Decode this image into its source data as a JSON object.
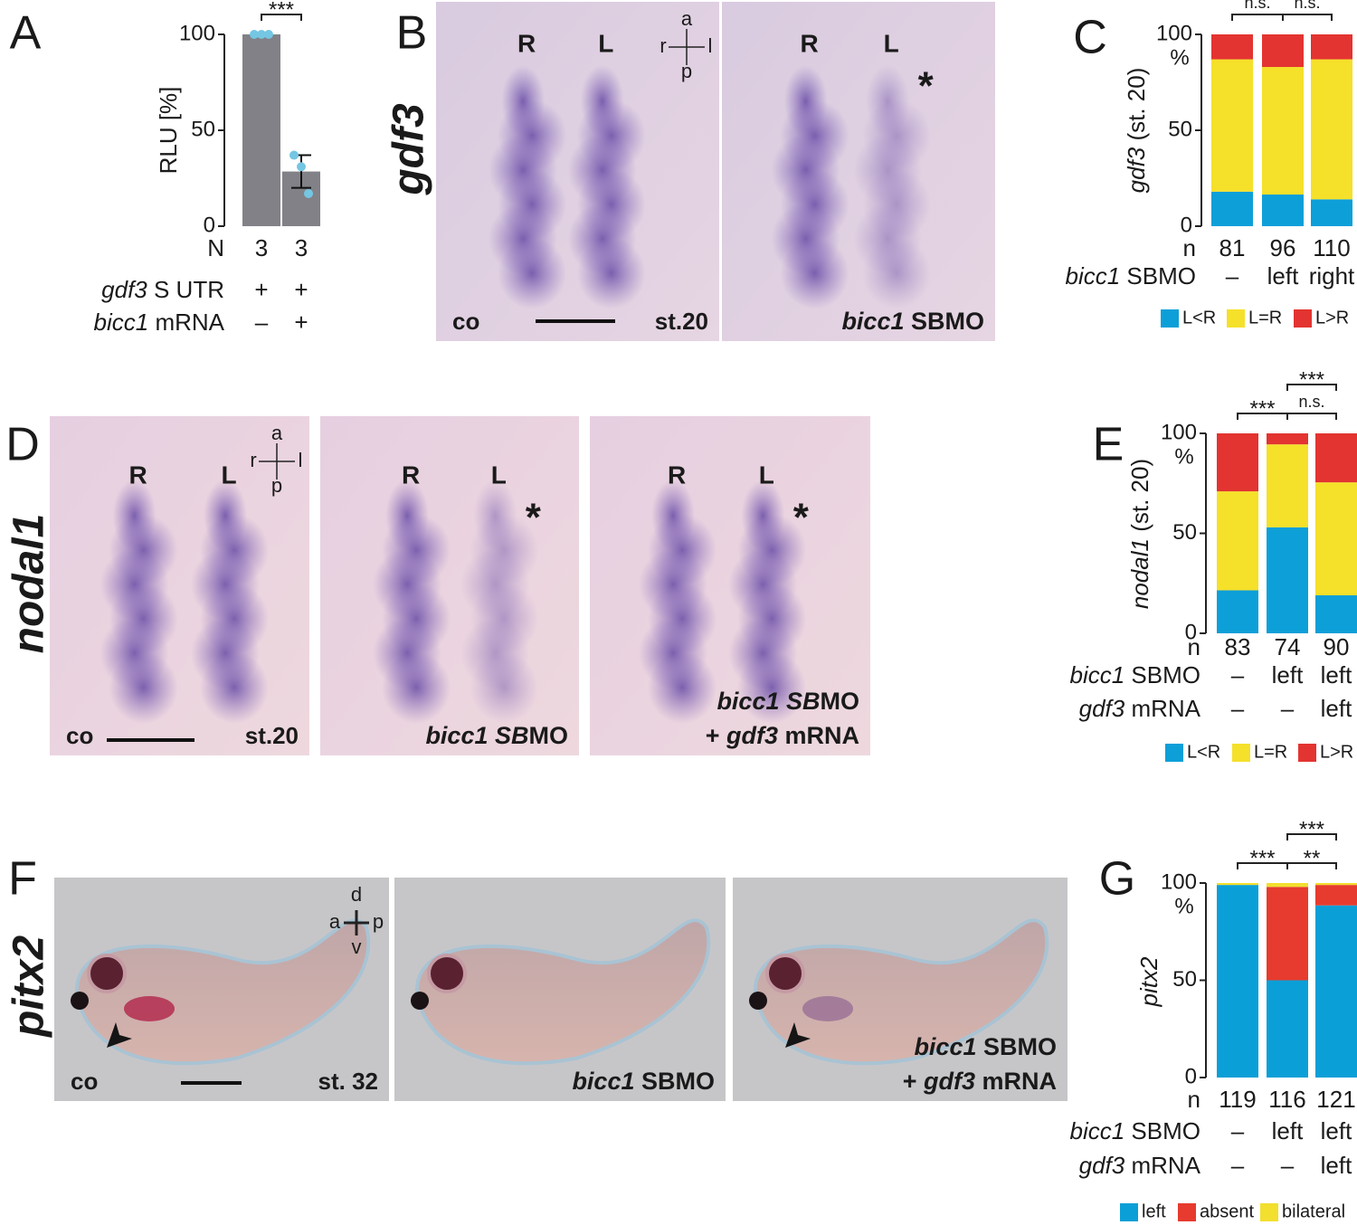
{
  "panel_letters": [
    "A",
    "B",
    "C",
    "D",
    "E",
    "F",
    "G"
  ],
  "chart_data": [
    {
      "type": "bar",
      "ylabel": [
        {
          "text": "RLU [%]"
        }
      ],
      "values": [
        100,
        28.5
      ],
      "errors": [
        null,
        8.5
      ],
      "points": [
        [
          100,
          100,
          100
        ],
        [
          37,
          31,
          17
        ]
      ],
      "color": "#818187",
      "point_color": "#74c6e2",
      "ylim": [
        0,
        100
      ],
      "yticks": [
        0,
        50,
        100
      ],
      "annotations": [
        {
          "text": "***",
          "from": 0,
          "to": 1,
          "level": 0
        }
      ],
      "rows": [
        {
          "label": [
            {
              "text": "N"
            }
          ],
          "values": [
            3,
            3
          ]
        },
        {
          "label": [
            {
              "text": "gdf3",
              "italic": true
            },
            {
              "text": " S UTR"
            }
          ],
          "values": [
            "+",
            "+"
          ]
        },
        {
          "label": [
            {
              "text": "bicc1",
              "italic": true
            },
            {
              "text": " mRNA"
            }
          ],
          "values": [
            "–",
            "+"
          ]
        }
      ]
    },
    {
      "type": "stacked_bar",
      "ylabel": [
        {
          "text": "gdf3",
          "italic": true
        },
        {
          "text": " (st. 20)"
        }
      ],
      "ylabel_unit": "%",
      "ylim": [
        0,
        100
      ],
      "yticks": [
        0,
        50,
        100
      ],
      "series": [
        {
          "name": "L<R",
          "color": "#0d9fd8",
          "values": [
            18,
            16.5,
            14
          ]
        },
        {
          "name": "L=R",
          "color": "#f5e02a",
          "values": [
            69,
            66.5,
            73
          ]
        },
        {
          "name": "L>R",
          "color": "#e33431",
          "values": [
            13,
            17,
            13
          ]
        }
      ],
      "annotations": [
        {
          "text": "n.s.",
          "from": 0,
          "to": 1,
          "level": 0
        },
        {
          "text": "n.s.",
          "from": 1,
          "to": 2,
          "level": 0
        }
      ],
      "rows": [
        {
          "label": [
            {
              "text": "n"
            }
          ],
          "values": [
            81,
            96,
            110
          ]
        },
        {
          "label": [
            {
              "text": "bicc1",
              "italic": true
            },
            {
              "text": " SBMO"
            }
          ],
          "values": [
            "–",
            "left",
            "right"
          ]
        }
      ]
    },
    {
      "type": "stacked_bar",
      "ylabel": [
        {
          "text": "nodal1",
          "italic": true
        },
        {
          "text": " (st. 20)"
        }
      ],
      "ylabel_unit": "%",
      "ylim": [
        0,
        100
      ],
      "yticks": [
        0,
        50,
        100
      ],
      "series": [
        {
          "name": "L<R",
          "color": "#0d9fd8",
          "values": [
            21.5,
            53,
            19
          ]
        },
        {
          "name": "L=R",
          "color": "#f5e02a",
          "values": [
            49.5,
            41.5,
            56.5
          ]
        },
        {
          "name": "L>R",
          "color": "#e33431",
          "values": [
            29,
            5.5,
            24.5
          ]
        }
      ],
      "annotations": [
        {
          "text": "***",
          "from": 0,
          "to": 1,
          "level": 0
        },
        {
          "text": "n.s.",
          "from": 1,
          "to": 2,
          "level": 0
        },
        {
          "text": "***",
          "from": 1,
          "to": 2,
          "level": 1
        }
      ],
      "rows": [
        {
          "label": [
            {
              "text": "n"
            }
          ],
          "values": [
            83,
            74,
            90
          ]
        },
        {
          "label": [
            {
              "text": "bicc1",
              "italic": true
            },
            {
              "text": " SBMO"
            }
          ],
          "values": [
            "–",
            "left",
            "left"
          ]
        },
        {
          "label": [
            {
              "text": "gdf3",
              "italic": true
            },
            {
              "text": " mRNA"
            }
          ],
          "values": [
            "–",
            "–",
            "left"
          ]
        }
      ]
    },
    {
      "type": "stacked_bar",
      "ylabel": [
        {
          "text": "pitx2",
          "italic": true
        }
      ],
      "ylabel_unit": "%",
      "ylim": [
        0,
        100
      ],
      "yticks": [
        0,
        50,
        100
      ],
      "series": [
        {
          "name": "left",
          "color": "#0b9fd7",
          "values": [
            99,
            50,
            88.5
          ]
        },
        {
          "name": "absent",
          "color": "#e63b2e",
          "values": [
            0,
            48,
            10.5
          ]
        },
        {
          "name": "bilateral",
          "color": "#f2df2e",
          "values": [
            1,
            2,
            1
          ]
        }
      ],
      "annotations": [
        {
          "text": "***",
          "from": 0,
          "to": 1,
          "level": 0
        },
        {
          "text": "**",
          "from": 1,
          "to": 2,
          "level": 0
        },
        {
          "text": "***",
          "from": 1,
          "to": 2,
          "level": 1
        }
      ],
      "rows": [
        {
          "label": [
            {
              "text": "n"
            }
          ],
          "values": [
            119,
            116,
            121
          ]
        },
        {
          "label": [
            {
              "text": "bicc1",
              "italic": true
            },
            {
              "text": " SBMO"
            }
          ],
          "values": [
            "–",
            "left",
            "left"
          ]
        },
        {
          "label": [
            {
              "text": "gdf3",
              "italic": true
            },
            {
              "text": " mRNA"
            }
          ],
          "values": [
            "–",
            "–",
            "left"
          ]
        }
      ]
    }
  ],
  "image_panels": [
    {
      "gene": "gdf3",
      "images": [
        {
          "markers": [
            "R",
            "L"
          ],
          "compass": [
            "a",
            "r",
            "l",
            "p"
          ],
          "caption_left": "co",
          "caption_right": "st.20"
        },
        {
          "markers": [
            "R",
            "L"
          ],
          "asterisk": "*",
          "caption": [
            [
              {
                "text": "bicc1",
                "italic": true
              },
              {
                "text": " SBMO"
              }
            ]
          ]
        }
      ]
    },
    {
      "gene": "nodal1",
      "images": [
        {
          "markers": [
            "R",
            "L"
          ],
          "compass": [
            "a",
            "r",
            "l",
            "p"
          ],
          "caption_left": "co",
          "caption_right": "st.20"
        },
        {
          "markers": [
            "R",
            "L"
          ],
          "asterisk": "*",
          "caption": [
            [
              {
                "text": "bicc1 SB",
                "italic": true
              },
              {
                "text": "MO"
              }
            ]
          ]
        },
        {
          "markers": [
            "R",
            "L"
          ],
          "asterisk": "*",
          "caption": [
            [
              {
                "text": "bicc1 SB",
                "italic": true
              },
              {
                "text": "MO"
              }
            ],
            [
              {
                "text": "+ "
              },
              {
                "text": "gdf3",
                "italic": true
              },
              {
                "text": " mRNA"
              }
            ]
          ]
        }
      ]
    },
    {
      "gene": "pitx2",
      "images": [
        {
          "compass": [
            "d",
            "a",
            "p",
            "v"
          ],
          "caption_left": "co",
          "caption_right": "st. 32"
        },
        {
          "caption": [
            [
              {
                "text": "bicc1",
                "italic": true
              },
              {
                "text": " SBMO"
              }
            ]
          ]
        },
        {
          "caption": [
            [
              {
                "text": "bicc1",
                "italic": true
              },
              {
                "text": " SBMO"
              }
            ],
            [
              {
                "text": "+ "
              },
              {
                "text": "gdf3",
                "italic": true
              },
              {
                "text": " mRNA"
              }
            ]
          ]
        }
      ]
    }
  ]
}
